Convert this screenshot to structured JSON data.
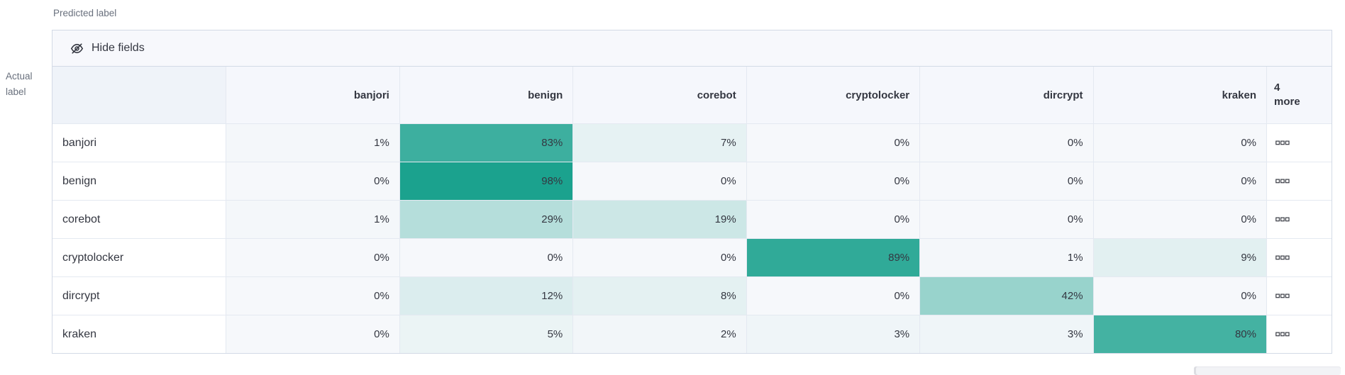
{
  "axis_labels": {
    "predicted": "Predicted label",
    "actual": "Actual label"
  },
  "toolbar": {
    "hide_fields_label": "Hide fields",
    "icon": "eye-closed-icon"
  },
  "grid": {
    "columns": [
      "banjori",
      "benign",
      "corebot",
      "cryptolocker",
      "dircrypt",
      "kraken"
    ],
    "more_column": {
      "count": "4",
      "label": "more",
      "cell_icon": "boxes-horizontal-icon"
    },
    "value_suffix": "%",
    "rows": [
      {
        "label": "banjori",
        "values": [
          1,
          83,
          7,
          0,
          0,
          0
        ]
      },
      {
        "label": "benign",
        "values": [
          0,
          98,
          0,
          0,
          0,
          0
        ]
      },
      {
        "label": "corebot",
        "values": [
          1,
          29,
          19,
          0,
          0,
          0
        ]
      },
      {
        "label": "cryptolocker",
        "values": [
          0,
          0,
          0,
          89,
          1,
          9
        ]
      },
      {
        "label": "dircrypt",
        "values": [
          0,
          12,
          8,
          0,
          42,
          0
        ]
      },
      {
        "label": "kraken",
        "values": [
          0,
          5,
          2,
          3,
          3,
          80
        ]
      }
    ]
  },
  "chart_data": {
    "type": "heatmap",
    "xlabel": "Predicted label",
    "ylabel": "Actual label",
    "x_categories": [
      "banjori",
      "benign",
      "corebot",
      "cryptolocker",
      "dircrypt",
      "kraken"
    ],
    "y_categories": [
      "banjori",
      "benign",
      "corebot",
      "cryptolocker",
      "dircrypt",
      "kraken"
    ],
    "values_percent": [
      [
        1,
        83,
        7,
        0,
        0,
        0
      ],
      [
        0,
        98,
        0,
        0,
        0,
        0
      ],
      [
        1,
        29,
        19,
        0,
        0,
        0
      ],
      [
        0,
        0,
        0,
        89,
        1,
        9
      ],
      [
        0,
        12,
        8,
        0,
        42,
        0
      ],
      [
        0,
        5,
        2,
        3,
        3,
        80
      ]
    ],
    "hidden_columns_indicator": "4 more",
    "legend_position": "none",
    "grid_lines": true
  },
  "colors": {
    "accent": "#17a08c",
    "cell_base": "#f6f8fb",
    "text": "#343741",
    "muted_text": "#69707d",
    "border": "#d3dae6"
  }
}
